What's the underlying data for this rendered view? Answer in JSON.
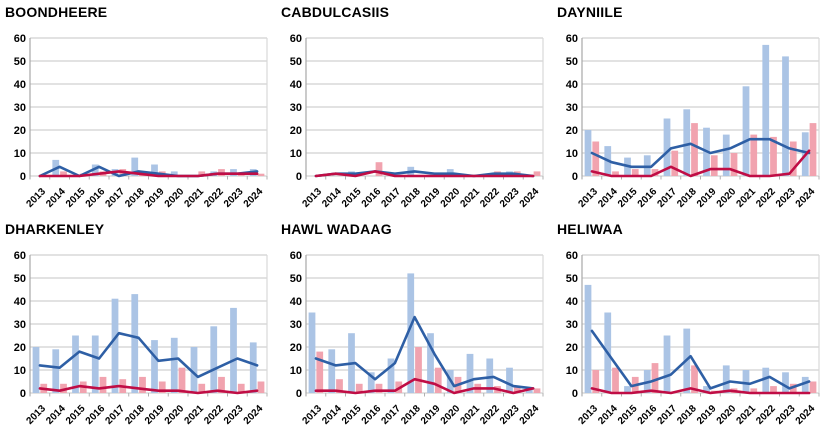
{
  "page": {
    "background": "#ffffff"
  },
  "palette": {
    "bar_blue": "#abc4e5",
    "bar_pink": "#f1a3af",
    "line_blue": "#2e5fa5",
    "line_red": "#c00d45",
    "grid": "#d9d9d9",
    "axis": "#a8a8a8",
    "tick": "#b0b0b0",
    "text": "#000000"
  },
  "chart_data": [
    {
      "type": "bar+line",
      "title": "BOONDHEERE",
      "categories": [
        "2013",
        "2014",
        "2015",
        "2016",
        "2017",
        "2018",
        "2019",
        "2020",
        "2021",
        "2022",
        "2023",
        "2024"
      ],
      "series": [
        {
          "name": "blue-bar-series",
          "kind": "bar",
          "color_key": "bar_blue",
          "values": [
            0,
            7,
            0,
            5,
            3,
            8,
            5,
            2,
            0,
            2,
            3,
            3
          ]
        },
        {
          "name": "pink-bar-series",
          "kind": "bar",
          "color_key": "bar_pink",
          "values": [
            0,
            2,
            1,
            2,
            3,
            1,
            2,
            0,
            2,
            3,
            1,
            1
          ]
        },
        {
          "name": "blue-line-series",
          "kind": "line",
          "color_key": "line_blue",
          "values": [
            0,
            4,
            0,
            4,
            0,
            2,
            1,
            0,
            0,
            1,
            1,
            2
          ]
        },
        {
          "name": "red-line-series",
          "kind": "line",
          "color_key": "line_red",
          "values": [
            0,
            0,
            0,
            1,
            2,
            1,
            0,
            0,
            0,
            1,
            1,
            1
          ]
        }
      ],
      "ylim": [
        0,
        60
      ],
      "yticks": [
        0,
        10,
        20,
        30,
        40,
        50,
        60
      ],
      "grid": true,
      "legend": false
    },
    {
      "type": "bar+line",
      "title": "CABDULCASIIS",
      "categories": [
        "2013",
        "2014",
        "2015",
        "2016",
        "2017",
        "2018",
        "2019",
        "2020",
        "2021",
        "2022",
        "2023",
        "2024"
      ],
      "series": [
        {
          "name": "blue-bar-series",
          "kind": "bar",
          "color_key": "bar_blue",
          "values": [
            0,
            0,
            2,
            0,
            0,
            4,
            0,
            3,
            0,
            0,
            2,
            0
          ]
        },
        {
          "name": "pink-bar-series",
          "kind": "bar",
          "color_key": "bar_pink",
          "values": [
            0,
            0,
            0,
            6,
            0,
            0,
            0,
            1,
            0,
            2,
            2,
            2
          ]
        },
        {
          "name": "blue-line-series",
          "kind": "line",
          "color_key": "line_blue",
          "values": [
            0,
            1,
            1,
            2,
            1,
            2,
            1,
            1,
            0,
            1,
            1,
            0
          ]
        },
        {
          "name": "red-line-series",
          "kind": "line",
          "color_key": "line_red",
          "values": [
            0,
            1,
            0,
            2,
            0,
            0,
            0,
            0,
            0,
            0,
            0,
            0
          ]
        }
      ],
      "ylim": [
        0,
        60
      ],
      "yticks": [
        0,
        10,
        20,
        30,
        40,
        50,
        60
      ],
      "grid": true,
      "legend": false
    },
    {
      "type": "bar+line",
      "title": "DAYNIILE",
      "categories": [
        "2013",
        "2014",
        "2015",
        "2016",
        "2017",
        "2018",
        "2019",
        "2020",
        "2021",
        "2022",
        "2023",
        "2024"
      ],
      "series": [
        {
          "name": "blue-bar-series",
          "kind": "bar",
          "color_key": "bar_blue",
          "values": [
            20,
            13,
            8,
            9,
            25,
            29,
            21,
            18,
            39,
            57,
            52,
            19
          ]
        },
        {
          "name": "pink-bar-series",
          "kind": "bar",
          "color_key": "bar_pink",
          "values": [
            15,
            2,
            3,
            3,
            11,
            23,
            9,
            10,
            18,
            17,
            15,
            23
          ]
        },
        {
          "name": "blue-line-series",
          "kind": "line",
          "color_key": "line_blue",
          "values": [
            10,
            6,
            4,
            4,
            12,
            14,
            10,
            12,
            16,
            16,
            12,
            10
          ]
        },
        {
          "name": "red-line-series",
          "kind": "line",
          "color_key": "line_red",
          "values": [
            2,
            0,
            0,
            0,
            4,
            0,
            3,
            3,
            0,
            0,
            1,
            11
          ]
        }
      ],
      "ylim": [
        0,
        60
      ],
      "yticks": [
        0,
        10,
        20,
        30,
        40,
        50,
        60
      ],
      "grid": true,
      "legend": false
    },
    {
      "type": "bar+line",
      "title": "DHARKENLEY",
      "categories": [
        "2013",
        "2014",
        "2015",
        "2016",
        "2017",
        "2018",
        "2019",
        "2020",
        "2021",
        "2022",
        "2023",
        "2024"
      ],
      "series": [
        {
          "name": "blue-bar-series",
          "kind": "bar",
          "color_key": "bar_blue",
          "values": [
            20,
            19,
            25,
            25,
            41,
            43,
            23,
            24,
            20,
            29,
            37,
            22
          ]
        },
        {
          "name": "pink-bar-series",
          "kind": "bar",
          "color_key": "bar_pink",
          "values": [
            4,
            4,
            5,
            7,
            6,
            7,
            5,
            11,
            4,
            7,
            4,
            5
          ]
        },
        {
          "name": "blue-line-series",
          "kind": "line",
          "color_key": "line_blue",
          "values": [
            12,
            11,
            18,
            15,
            26,
            24,
            14,
            15,
            7,
            11,
            15,
            12
          ]
        },
        {
          "name": "red-line-series",
          "kind": "line",
          "color_key": "line_red",
          "values": [
            2,
            1,
            3,
            2,
            3,
            2,
            1,
            1,
            0,
            1,
            0,
            1
          ]
        }
      ],
      "ylim": [
        0,
        60
      ],
      "yticks": [
        0,
        10,
        20,
        30,
        40,
        50,
        60
      ],
      "grid": true,
      "legend": false
    },
    {
      "type": "bar+line",
      "title": "HAWL WADAAG",
      "categories": [
        "2013",
        "2014",
        "2015",
        "2016",
        "2017",
        "2018",
        "2019",
        "2020",
        "2021",
        "2022",
        "2023",
        "2024"
      ],
      "series": [
        {
          "name": "blue-bar-series",
          "kind": "bar",
          "color_key": "bar_blue",
          "values": [
            35,
            19,
            26,
            9,
            15,
            52,
            26,
            10,
            17,
            15,
            11,
            2
          ]
        },
        {
          "name": "pink-bar-series",
          "kind": "bar",
          "color_key": "bar_pink",
          "values": [
            18,
            6,
            4,
            4,
            5,
            20,
            11,
            7,
            4,
            3,
            3,
            2
          ]
        },
        {
          "name": "blue-line-series",
          "kind": "line",
          "color_key": "line_blue",
          "values": [
            15,
            12,
            13,
            6,
            13,
            33,
            17,
            3,
            6,
            7,
            3,
            2
          ]
        },
        {
          "name": "red-line-series",
          "kind": "line",
          "color_key": "line_red",
          "values": [
            1,
            1,
            0,
            1,
            1,
            6,
            4,
            0,
            2,
            2,
            0,
            2
          ]
        }
      ],
      "ylim": [
        0,
        60
      ],
      "yticks": [
        0,
        10,
        20,
        30,
        40,
        50,
        60
      ],
      "grid": true,
      "legend": false
    },
    {
      "type": "bar+line",
      "title": "HELIWAA",
      "categories": [
        "2013",
        "2014",
        "2015",
        "2016",
        "2017",
        "2018",
        "2019",
        "2020",
        "2021",
        "2022",
        "2023",
        "2024"
      ],
      "series": [
        {
          "name": "blue-bar-series",
          "kind": "bar",
          "color_key": "bar_blue",
          "values": [
            47,
            35,
            3,
            10,
            25,
            28,
            3,
            12,
            10,
            11,
            9,
            7
          ]
        },
        {
          "name": "pink-bar-series",
          "kind": "bar",
          "color_key": "bar_pink",
          "values": [
            10,
            11,
            7,
            13,
            0,
            12,
            1,
            2,
            2,
            3,
            4,
            5
          ]
        },
        {
          "name": "blue-line-series",
          "kind": "line",
          "color_key": "line_blue",
          "values": [
            27,
            15,
            3,
            5,
            8,
            16,
            2,
            5,
            4,
            7,
            2,
            5
          ]
        },
        {
          "name": "red-line-series",
          "kind": "line",
          "color_key": "line_red",
          "values": [
            2,
            0,
            0,
            1,
            0,
            2,
            0,
            1,
            0,
            0,
            0,
            0
          ]
        }
      ],
      "ylim": [
        0,
        60
      ],
      "yticks": [
        0,
        10,
        20,
        30,
        40,
        50,
        60
      ],
      "grid": true,
      "legend": false
    }
  ]
}
